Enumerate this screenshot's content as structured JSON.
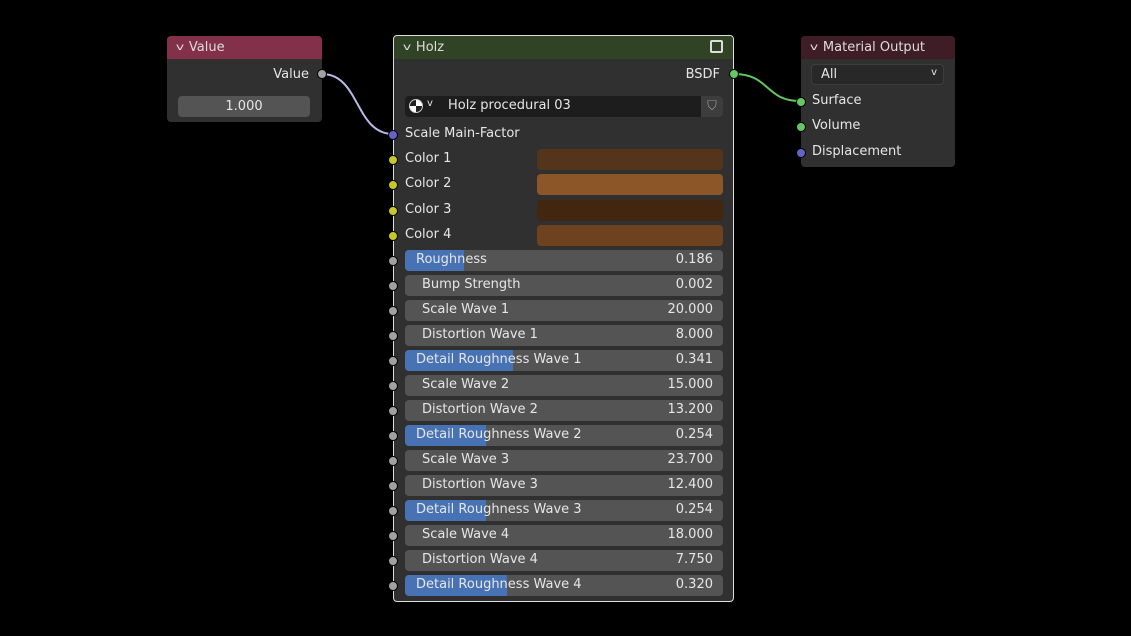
{
  "value_node": {
    "title": "Value",
    "header_color": "#83314a",
    "output_label": "Value",
    "value": "1.000"
  },
  "holz_node": {
    "title": "Holz",
    "header_color": "#314325",
    "output_label": "BSDF",
    "material_name": "Holz procedural 03",
    "input_label": "Scale Main-Factor",
    "colors": [
      {
        "label": "Color 1",
        "color": "#55341c"
      },
      {
        "label": "Color 2",
        "color": "#8d5628"
      },
      {
        "label": "Color 3",
        "color": "#42260f"
      },
      {
        "label": "Color 4",
        "color": "#6e421e"
      }
    ],
    "fields": [
      {
        "label": "Roughness",
        "value": "0.186",
        "slider": true,
        "fraction": 0.186
      },
      {
        "label": "Bump Strength",
        "value": "0.002",
        "slider": false
      },
      {
        "label": "Scale Wave 1",
        "value": "20.000",
        "slider": false
      },
      {
        "label": "Distortion Wave 1",
        "value": "8.000",
        "slider": false
      },
      {
        "label": "Detail Roughness Wave 1",
        "value": "0.341",
        "slider": true,
        "fraction": 0.341
      },
      {
        "label": "Scale Wave 2",
        "value": "15.000",
        "slider": false
      },
      {
        "label": "Distortion Wave 2",
        "value": "13.200",
        "slider": false
      },
      {
        "label": "Detail Roughness Wave 2",
        "value": "0.254",
        "slider": true,
        "fraction": 0.254
      },
      {
        "label": "Scale Wave 3",
        "value": "23.700",
        "slider": false
      },
      {
        "label": "Distortion Wave 3",
        "value": "12.400",
        "slider": false
      },
      {
        "label": "Detail Roughness Wave 3",
        "value": "0.254",
        "slider": true,
        "fraction": 0.254
      },
      {
        "label": "Scale Wave 4",
        "value": "18.000",
        "slider": false
      },
      {
        "label": "Distortion Wave 4",
        "value": "7.750",
        "slider": false
      },
      {
        "label": "Detail Roughness Wave 4",
        "value": "0.320",
        "slider": true,
        "fraction": 0.32
      }
    ]
  },
  "output_node": {
    "title": "Material Output",
    "header_color": "#3f1d27",
    "target": "All",
    "inputs": [
      "Surface",
      "Volume",
      "Displacement"
    ]
  }
}
